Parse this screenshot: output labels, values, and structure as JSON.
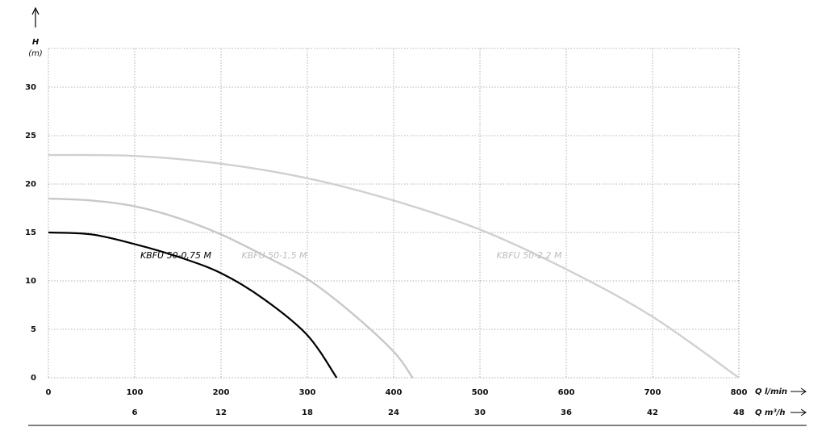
{
  "chart_data": {
    "type": "line",
    "y_label": "H",
    "y_unit": "(m)",
    "x_label": "Q l/min",
    "x2_label": "Q m³/h",
    "xlim": [
      0,
      800
    ],
    "xticks": [
      0,
      100,
      200,
      300,
      400,
      500,
      600,
      700,
      800
    ],
    "x2lim": [
      0,
      48
    ],
    "x2ticks": [
      6,
      12,
      18,
      24,
      30,
      36,
      42,
      48
    ],
    "ylim": [
      0,
      34
    ],
    "yticks": [
      0,
      5,
      10,
      15,
      20,
      25,
      30
    ],
    "grid": true,
    "series": [
      {
        "name": "KBFU 50-0,75 M",
        "color": "#000000",
        "x": [
          0,
          50,
          100,
          150,
          200,
          250,
          300,
          334
        ],
        "values": [
          15,
          14.8,
          13.8,
          12.5,
          10.8,
          8.1,
          4.4,
          0
        ]
      },
      {
        "name": "KBFU 50-1,5 M",
        "color": "#c8c8c8",
        "x": [
          0,
          50,
          100,
          150,
          200,
          250,
          300,
          350,
          400,
          422
        ],
        "values": [
          18.5,
          18.3,
          17.7,
          16.5,
          14.8,
          12.6,
          10.2,
          6.8,
          2.7,
          0
        ]
      },
      {
        "name": "KBFU 50-2,2 M",
        "color": "#d0d0d0",
        "x": [
          0,
          100,
          200,
          300,
          400,
          500,
          600,
          700,
          800
        ],
        "values": [
          23,
          22.9,
          22.1,
          20.6,
          18.3,
          15.3,
          11.2,
          6.3,
          0
        ]
      }
    ]
  }
}
